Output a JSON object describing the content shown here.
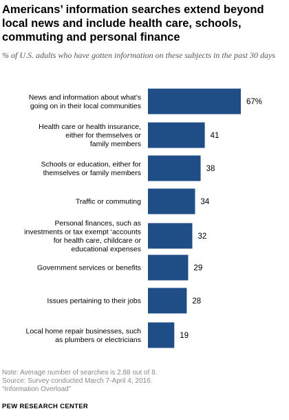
{
  "title": "Americans’ information searches extend beyond local news and include health care, schools, commuting and personal finance",
  "subtitle": "% of U.S. adults who have gotten information on these subjects in the past 30 days",
  "colors": {
    "bar": "#1f4e86",
    "label": "#000000",
    "note": "#888888"
  },
  "chart_data": {
    "type": "bar",
    "orientation": "horizontal",
    "categories": [
      [
        "News and information about what’s",
        "going on in their local communities"
      ],
      [
        "Health care or health insurance,",
        "either for themselves or",
        "family members"
      ],
      [
        "Schools or education, either for",
        "themselves or family members"
      ],
      [
        "Traffic or commuting"
      ],
      [
        "Personal finances, such as",
        "investments or tax exempt ‘accounts",
        "for health care, childcare or",
        "educational expenses"
      ],
      [
        "Government services or benefits"
      ],
      [
        "Issues pertaining to their jobs"
      ],
      [
        "Local home repair businesses, such",
        "as plumbers or electricians"
      ]
    ],
    "values": [
      67,
      41,
      38,
      34,
      32,
      29,
      28,
      19
    ],
    "value_labels": [
      "67%",
      "41",
      "38",
      "34",
      "32",
      "29",
      "28",
      "19"
    ],
    "xlim": [
      0,
      67
    ],
    "grid": false,
    "legend": "none"
  },
  "notes": [
    "Note: Average number of searches is 2.88 out of 8.",
    "Source: Survey conducted March 7-April 4, 2016.",
    "“Information Overload”"
  ],
  "source_org": "PEW RESEARCH CENTER"
}
